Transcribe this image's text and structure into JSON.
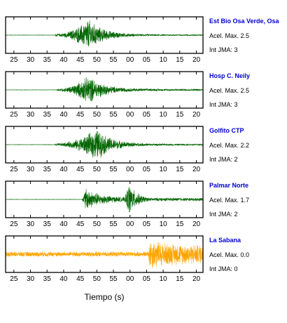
{
  "figure": {
    "xlabel": "Tiempo (s)",
    "background": "#ffffff"
  },
  "chart_data": {
    "type": "line",
    "xaxis": {
      "ticks": [
        "25",
        "30",
        "35",
        "40",
        "45",
        "50",
        "55",
        "00",
        "05",
        "10",
        "15",
        "20"
      ],
      "range_sec": [
        22.5,
        82
      ]
    },
    "panels": [
      {
        "station": "Est Bio Osa Verde, Osa",
        "accel_label": "Acel. Max. 2.5",
        "int_label": "Int JMA: 3",
        "color": "#006400",
        "onset_sec": 37.5,
        "peak_sec": 47.5,
        "peak_amp": 1.0,
        "tail_amp": 0.04,
        "noise_amp": 0.01,
        "second_onset_sec": null,
        "show_xticks": true
      },
      {
        "station": "Hosp C. Neily",
        "accel_label": "Acel. Max. 2.5",
        "int_label": "Int JMA: 3",
        "color": "#006400",
        "onset_sec": 38.0,
        "peak_sec": 47.5,
        "peak_amp": 0.9,
        "tail_amp": 0.06,
        "noise_amp": 0.01,
        "second_onset_sec": null,
        "show_xticks": true
      },
      {
        "station": "Golfito CTP",
        "accel_label": "Acel. Max. 2.2",
        "int_label": "Int JMA: 2",
        "color": "#006400",
        "onset_sec": 37.5,
        "peak_sec": 50.0,
        "peak_amp": 1.0,
        "tail_amp": 0.05,
        "noise_amp": 0.01,
        "second_onset_sec": null,
        "show_xticks": true
      },
      {
        "station": "Palmar Norte",
        "accel_label": "Acel. Max. 1.7",
        "int_label": "Int JMA: 2",
        "color": "#006400",
        "onset_sec": 45.5,
        "peak_sec": 46.5,
        "peak_amp": 0.75,
        "tail_amp": 0.1,
        "noise_amp": 0.01,
        "second_onset_sec": 58.5,
        "show_xticks": true
      },
      {
        "station": "La Sabana",
        "accel_label": "Acel. Max. 0.0",
        "int_label": "Int JMA: 0",
        "color": "#FFA500",
        "onset_sec": 65.0,
        "peak_sec": 66.0,
        "peak_amp": 1.0,
        "tail_amp": 0.6,
        "noise_amp": 0.16,
        "second_onset_sec": null,
        "show_xticks": true
      }
    ],
    "label_color": "#0000CC"
  }
}
